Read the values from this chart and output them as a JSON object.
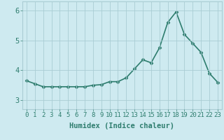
{
  "x": [
    0,
    1,
    2,
    3,
    4,
    5,
    6,
    7,
    8,
    9,
    10,
    11,
    12,
    13,
    14,
    15,
    16,
    17,
    18,
    19,
    20,
    21,
    22,
    23
  ],
  "y": [
    3.65,
    3.55,
    3.45,
    3.45,
    3.45,
    3.45,
    3.45,
    3.45,
    3.5,
    3.52,
    3.62,
    3.62,
    3.75,
    4.05,
    4.35,
    4.25,
    4.75,
    5.6,
    5.95,
    5.2,
    4.9,
    4.6,
    3.9,
    3.6
  ],
  "line_color": "#2E7D6E",
  "marker": "D",
  "marker_size": 2.5,
  "bg_color": "#CEEAF0",
  "grid_color": "#AACDD4",
  "xlabel": "Humidex (Indice chaleur)",
  "xlabel_fontsize": 7.5,
  "xlim": [
    -0.5,
    23.5
  ],
  "ylim": [
    2.7,
    6.3
  ],
  "yticks": [
    3,
    4,
    5,
    6
  ],
  "xtick_labels": [
    "0",
    "1",
    "2",
    "3",
    "4",
    "5",
    "6",
    "7",
    "8",
    "9",
    "10",
    "11",
    "12",
    "13",
    "14",
    "15",
    "16",
    "17",
    "18",
    "19",
    "20",
    "21",
    "22",
    "23"
  ],
  "tick_fontsize": 6.5,
  "ytick_fontsize": 7.5,
  "linewidth": 1.2
}
